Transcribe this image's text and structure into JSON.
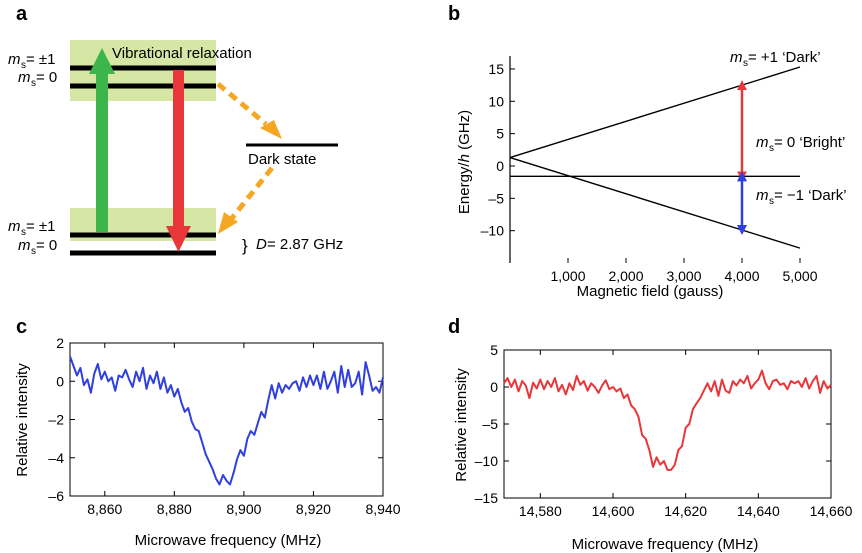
{
  "panel_a": {
    "label": "a",
    "ms_pm1": "m",
    "ms_sub": "s",
    "ms_pm1_val": " = ±1",
    "ms_0_val": " = 0",
    "vibrational": "Vibrational relaxation",
    "dark_state": "Dark state",
    "splitting_D": "D",
    "splitting_val": " = 2.87 GHz",
    "brace": "}"
  },
  "panel_b": {
    "label": "b",
    "ylabel_pre": "Energy/",
    "ylabel_h": "h",
    "ylabel_post": " (GHz)",
    "xlabel": "Magnetic field (gauss)",
    "line_plus1_label": " = +1 ‘Dark’",
    "line_0_label": " = 0 ‘Bright’",
    "line_minus1_label": " = −1 ‘Dark’"
  },
  "panel_c": {
    "label": "c",
    "ylabel": "Relative intensity",
    "xlabel": "Microwave frequency (MHz)"
  },
  "panel_d": {
    "label": "d",
    "ylabel": "Relative intensity",
    "xlabel": "Microwave frequency (MHz)"
  },
  "colors": {
    "green": "#3cb64a",
    "red": "#e8373a",
    "orange": "#f5a623",
    "blue": "#2f3fe0",
    "band": "#d6e6a4"
  },
  "chart_data": [
    {
      "id": "b",
      "type": "line",
      "xlabel": "Magnetic field (gauss)",
      "ylabel": "Energy/h (GHz)",
      "xlim": [
        0,
        5000
      ],
      "ylim": [
        -15,
        17
      ],
      "xticks": [
        1000,
        2000,
        3000,
        4000,
        5000
      ],
      "xtick_labels": [
        "1,000",
        "2,000",
        "3,000",
        "4,000",
        "5,000"
      ],
      "yticks": [
        15,
        10,
        5,
        0,
        -5,
        -10
      ],
      "ytick_labels": [
        "15",
        "10",
        "5",
        "0",
        "–5",
        "–10"
      ],
      "series": [
        {
          "name": "m_s = +1",
          "x": [
            0,
            5000
          ],
          "y": [
            1.3,
            15.3
          ]
        },
        {
          "name": "m_s = 0",
          "x": [
            0,
            5000
          ],
          "y": [
            -1.6,
            -1.6
          ]
        },
        {
          "name": "m_s = -1",
          "x": [
            0,
            5000
          ],
          "y": [
            1.3,
            -12.7
          ]
        }
      ],
      "arrows": [
        {
          "color": "red",
          "x": 4000,
          "y_from": -1.6,
          "y_to": 12.5
        },
        {
          "color": "blue",
          "x": 4000,
          "y_from": -1.6,
          "y_to": -9.9
        }
      ]
    },
    {
      "id": "c",
      "type": "line",
      "xlabel": "Microwave frequency (MHz)",
      "ylabel": "Relative intensity",
      "xlim": [
        8850,
        8940
      ],
      "ylim": [
        -6,
        2
      ],
      "xticks": [
        8860,
        8880,
        8900,
        8920,
        8940
      ],
      "xtick_labels": [
        "8,860",
        "8,880",
        "8,900",
        "8,920",
        "8,940"
      ],
      "yticks": [
        2,
        0,
        -2,
        -4,
        -6
      ],
      "ytick_labels": [
        "2",
        "0",
        "–2",
        "–4",
        "–6"
      ],
      "color": "#2f3fe0",
      "x": [
        8850,
        8851,
        8852,
        8853,
        8854,
        8855,
        8856,
        8857,
        8858,
        8859,
        8860,
        8861,
        8862,
        8863,
        8864,
        8865,
        8866,
        8867,
        8868,
        8869,
        8870,
        8871,
        8872,
        8873,
        8874,
        8875,
        8876,
        8877,
        8878,
        8879,
        8880,
        8881,
        8882,
        8883,
        8884,
        8885,
        8886,
        8887,
        8888,
        8889,
        8890,
        8891,
        8892,
        8893,
        8894,
        8895,
        8896,
        8897,
        8898,
        8899,
        8900,
        8901,
        8902,
        8903,
        8904,
        8905,
        8906,
        8907,
        8908,
        8909,
        8910,
        8911,
        8912,
        8913,
        8914,
        8915,
        8916,
        8917,
        8918,
        8919,
        8920,
        8921,
        8922,
        8923,
        8924,
        8925,
        8926,
        8927,
        8928,
        8929,
        8930,
        8931,
        8932,
        8933,
        8934,
        8935,
        8936,
        8937,
        8938,
        8939,
        8940
      ],
      "y": [
        1.3,
        0.8,
        0.3,
        0.7,
        -0.2,
        0.1,
        -0.6,
        0.4,
        0.9,
        0.1,
        0.5,
        0.0,
        0.2,
        -0.5,
        0.3,
        0.2,
        0.6,
        0.1,
        -0.3,
        0.5,
        0.0,
        0.7,
        -0.4,
        0.3,
        -0.1,
        0.5,
        -0.4,
        0.2,
        -0.6,
        -0.2,
        -0.8,
        -0.4,
        -1.1,
        -1.6,
        -1.4,
        -2.1,
        -2.5,
        -2.6,
        -3.2,
        -3.8,
        -4.2,
        -4.6,
        -5.1,
        -5.4,
        -4.9,
        -5.2,
        -5.4,
        -4.8,
        -4.1,
        -3.6,
        -3.9,
        -3.0,
        -2.6,
        -2.8,
        -2.2,
        -1.6,
        -1.9,
        -1.0,
        -0.2,
        -0.9,
        -0.1,
        -0.6,
        -0.2,
        -0.4,
        -0.1,
        0.0,
        -0.5,
        0.2,
        -0.3,
        0.3,
        -0.2,
        0.3,
        -0.4,
        0.5,
        -0.4,
        0.0,
        0.5,
        -0.6,
        0.8,
        -0.3,
        0.6,
        -0.3,
        -0.1,
        0.5,
        -0.7,
        1.0,
        0.3,
        -0.5,
        -0.3,
        -0.6,
        0.2
      ]
    },
    {
      "id": "d",
      "type": "line",
      "xlabel": "Microwave frequency (MHz)",
      "ylabel": "Relative intensity",
      "xlim": [
        14570,
        14660
      ],
      "ylim": [
        -15,
        5
      ],
      "xticks": [
        14580,
        14600,
        14620,
        14640,
        14660
      ],
      "xtick_labels": [
        "14,580",
        "14,600",
        "14,620",
        "14,640",
        "14,660"
      ],
      "yticks": [
        5,
        0,
        -5,
        -10,
        -15
      ],
      "ytick_labels": [
        "5",
        "0",
        "–5",
        "–10",
        "–15"
      ],
      "color": "#e8373a",
      "x": [
        14570,
        14571,
        14572,
        14573,
        14574,
        14575,
        14576,
        14577,
        14578,
        14579,
        14580,
        14581,
        14582,
        14583,
        14584,
        14585,
        14586,
        14587,
        14588,
        14589,
        14590,
        14591,
        14592,
        14593,
        14594,
        14595,
        14596,
        14597,
        14598,
        14599,
        14600,
        14601,
        14602,
        14603,
        14604,
        14605,
        14606,
        14607,
        14608,
        14609,
        14610,
        14611,
        14612,
        14613,
        14614,
        14615,
        14616,
        14617,
        14618,
        14619,
        14620,
        14621,
        14622,
        14623,
        14624,
        14625,
        14626,
        14627,
        14628,
        14629,
        14630,
        14631,
        14632,
        14633,
        14634,
        14635,
        14636,
        14637,
        14638,
        14639,
        14640,
        14641,
        14642,
        14643,
        14644,
        14645,
        14646,
        14647,
        14648,
        14649,
        14650,
        14651,
        14652,
        14653,
        14654,
        14655,
        14656,
        14657,
        14658,
        14659,
        14660
      ],
      "y": [
        0.5,
        1.2,
        0.0,
        1.0,
        -0.6,
        0.8,
        0.2,
        -1.5,
        0.6,
        -0.2,
        1.0,
        -0.3,
        0.8,
        0.0,
        1.2,
        -0.6,
        0.3,
        -1.0,
        0.5,
        -0.4,
        1.5,
        0.3,
        0.8,
        -0.5,
        0.5,
        0.0,
        -0.8,
        0.2,
        0.9,
        -0.3,
        0.0,
        -0.6,
        -0.2,
        -1.5,
        -1.0,
        -2.5,
        -3.0,
        -4.0,
        -6.5,
        -7.0,
        -8.5,
        -10.8,
        -9.5,
        -10.5,
        -10.0,
        -11.2,
        -11.2,
        -10.5,
        -8.5,
        -8.0,
        -5.5,
        -5.0,
        -3.0,
        -2.2,
        -1.5,
        -0.5,
        0.5,
        -0.6,
        0.8,
        -1.2,
        1.0,
        -0.5,
        -0.8,
        0.8,
        0.2,
        1.0,
        0.5,
        1.5,
        -0.2,
        0.5,
        1.0,
        2.2,
        0.5,
        -0.3,
        0.8,
        1.0,
        0.3,
        0.5,
        -0.3,
        0.8,
        0.5,
        0.8,
        0.0,
        1.2,
        -0.2,
        0.8,
        1.5,
        -0.8,
        0.8,
        -0.2,
        0.3
      ]
    }
  ]
}
